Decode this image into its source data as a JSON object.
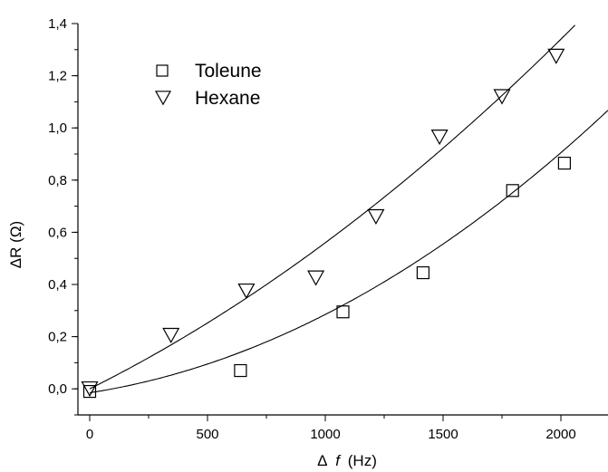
{
  "chart_data": {
    "type": "scatter",
    "xlabel_prefix": "Δ",
    "xlabel_var": "f",
    "xlabel_unit": "(Hz)",
    "ylabel": "ΔR (Ω)",
    "xlim": [
      -50,
      2200
    ],
    "ylim": [
      -0.1,
      1.4
    ],
    "xticks": [
      0,
      500,
      1000,
      1500,
      2000
    ],
    "yticks": [
      0.0,
      0.2,
      0.4,
      0.6,
      0.8,
      1.0,
      1.2,
      1.4
    ],
    "ytick_labels": [
      "0,0",
      "0,2",
      "0,4",
      "0,6",
      "0,8",
      "1,0",
      "1,2",
      "1,4"
    ],
    "xtick_labels": [
      "0",
      "500",
      "1000",
      "1500",
      "2000"
    ],
    "legend": {
      "placement": "top-left",
      "entries": [
        "Toleune",
        "Hexane"
      ]
    },
    "series": [
      {
        "name": "Toleune",
        "marker": "square",
        "x": [
          0,
          640,
          1075,
          1415,
          1795,
          2015
        ],
        "y": [
          -0.01,
          0.07,
          0.295,
          0.445,
          0.76,
          0.865
        ],
        "fit": {
          "kind": "quadratic",
          "a": -0.015,
          "b": 0.00014,
          "c": 1.6e-07
        }
      },
      {
        "name": "Hexane",
        "marker": "triangle-down",
        "x": [
          0,
          345,
          665,
          960,
          1215,
          1485,
          1750,
          1980
        ],
        "y": [
          0.0,
          0.205,
          0.375,
          0.425,
          0.66,
          0.965,
          1.12,
          1.275
        ],
        "fit": {
          "kind": "quadratic",
          "a": 0.0,
          "b": 0.00045,
          "c": 1.1e-07
        }
      }
    ]
  }
}
